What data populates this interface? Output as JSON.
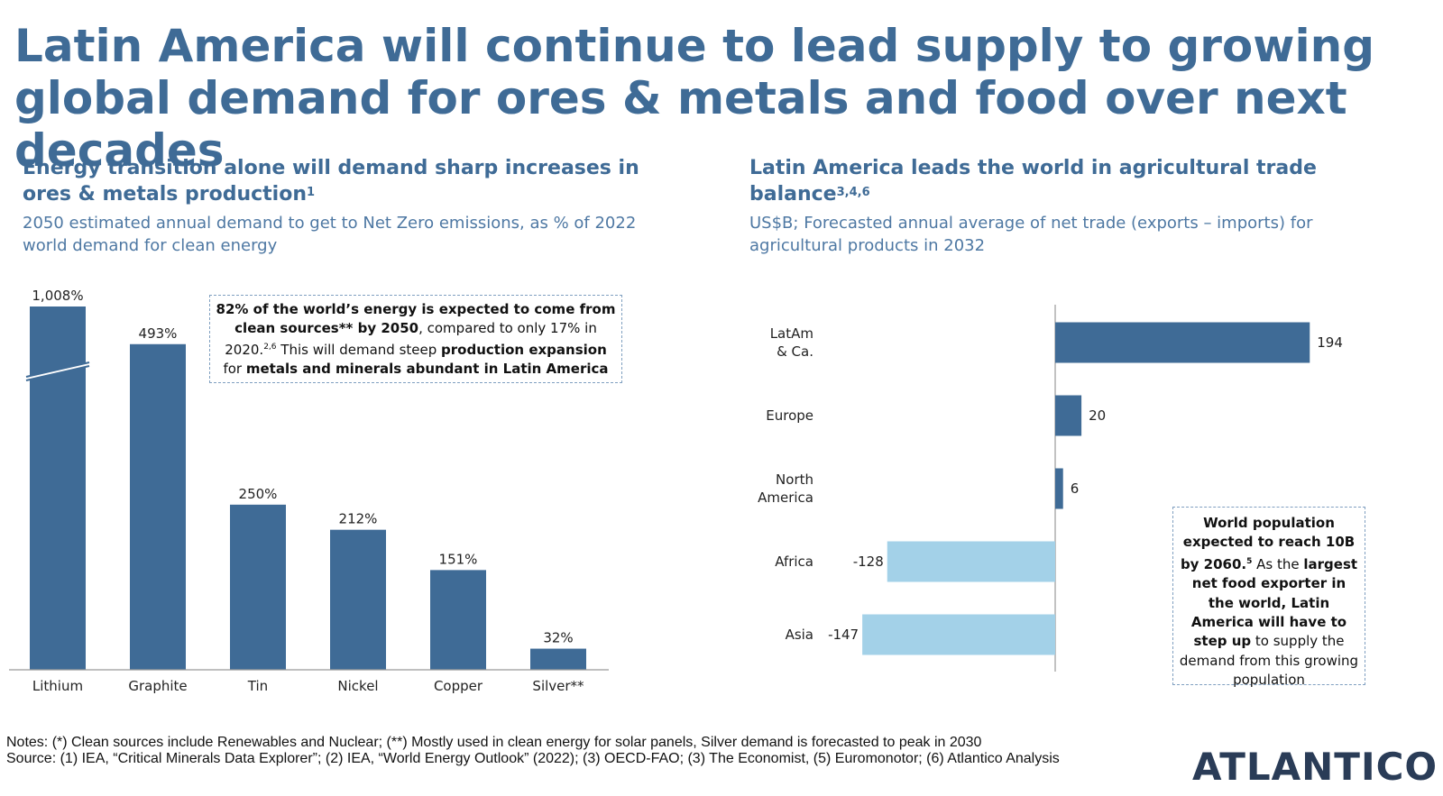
{
  "title": "Latin America will continue to lead supply to growing global demand for ores & metals and food over next decades",
  "left": {
    "heading": "Energy transition alone will demand sharp increases in ores & metals production",
    "heading_sup": "1",
    "description": "2050 estimated annual demand to get to Net Zero emissions, as % of 2022 world demand for clean energy",
    "callout": {
      "p1": "82% of the world’s energy is expected to come from clean sources** by 2050",
      "p2": ", compared to only 17% in 2020.",
      "p2_sup": "2,6",
      "p3": " This will demand steep ",
      "p4": "production expansion",
      "p5": " for ",
      "p6": "metals and minerals abundant in Latin America"
    }
  },
  "right": {
    "heading": "Latin America leads the world in agricultural trade balance",
    "heading_sup": "3,4,6",
    "description": "US$B; Forecasted annual average of net trade (exports – imports) for agricultural products in 2032",
    "callout": {
      "p1": "World population expected to reach 10B by 2060.",
      "p1_sup": "5",
      "p2": " As the ",
      "p3": "largest net food exporter in the world, Latin America will have to step up",
      "p4": " to supply the demand from this growing population"
    }
  },
  "chart_data": [
    {
      "type": "bar",
      "categories": [
        "Lithium",
        "Graphite",
        "Tin",
        "Nickel",
        "Copper",
        "Silver**"
      ],
      "values": [
        1008,
        493,
        250,
        212,
        151,
        32
      ],
      "labels": [
        "1,008%",
        "493%",
        "250%",
        "212%",
        "151%",
        "32%"
      ],
      "unit": "%",
      "axis_break": true,
      "title": "",
      "xlabel": "",
      "ylabel": "",
      "ylim": [
        0,
        550
      ],
      "grid": false,
      "color": "#3f6b96"
    },
    {
      "type": "bar",
      "orientation": "horizontal",
      "categories": [
        [
          "LatAm",
          "& Ca."
        ],
        [
          "Europe"
        ],
        [
          "North",
          "America"
        ],
        [
          "Africa"
        ],
        [
          "Asia"
        ]
      ],
      "values": [
        194,
        20,
        6,
        -128,
        -147
      ],
      "labels": [
        "194",
        "20",
        "6",
        "-128",
        "-147"
      ],
      "unit": "US$B",
      "xlim": [
        -147,
        194
      ],
      "grid": false,
      "positive_color": "#3f6b96",
      "negative_color": "#a3d1e8"
    }
  ],
  "notes": {
    "line1": "Notes: (*) Clean sources include Renewables and Nuclear; (**) Mostly used in clean energy for solar panels, Silver demand is forecasted to peak in 2030",
    "line2": "Source: (1) IEA, “Critical Minerals Data Explorer”; (2) IEA, “World Energy Outlook” (2022); (3) OECD-FAO; (3) The Economist, (5) Euromonotor; (6) Atlantico Analysis"
  },
  "logo": {
    "text": "ATLANTICO"
  }
}
